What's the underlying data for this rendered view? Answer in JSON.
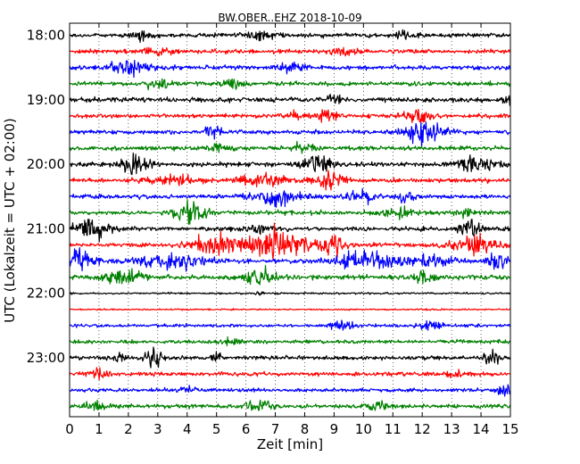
{
  "chart_data": {
    "type": "line",
    "title": "BW.OBER..EHZ 2018-10-09",
    "xlabel": "Zeit  [min]",
    "ylabel": "UTC (Lokalzeit = UTC + 02:00)",
    "xlim": [
      0,
      15
    ],
    "x_ticks": [
      "0",
      "1",
      "2",
      "3",
      "4",
      "5",
      "6",
      "7",
      "8",
      "9",
      "10",
      "11",
      "12",
      "13",
      "14",
      "15"
    ],
    "y_tick_labels": [
      "18:00",
      "19:00",
      "20:00",
      "21:00",
      "22:00",
      "23:00"
    ],
    "y_tick_rows": [
      0,
      4,
      8,
      12,
      16,
      20
    ],
    "grid": "vertical dotted lines at each minute",
    "row_interval_min": 15,
    "colors": [
      "#000000",
      "#ff0000",
      "#0000ff",
      "#008000"
    ],
    "traces": [
      {
        "start": "18:00",
        "color": "#000000",
        "amp": 0.22,
        "bursts": [
          [
            2.4,
            0.55,
            0.3
          ],
          [
            6.5,
            0.45,
            0.6
          ],
          [
            11.5,
            0.4,
            0.4
          ]
        ]
      },
      {
        "start": "18:15",
        "color": "#ff0000",
        "amp": 0.22,
        "bursts": [
          [
            3.0,
            0.4,
            0.5
          ],
          [
            9.5,
            0.4,
            0.5
          ]
        ]
      },
      {
        "start": "18:30",
        "color": "#0000ff",
        "amp": 0.22,
        "bursts": [
          [
            2.0,
            0.9,
            0.6
          ],
          [
            7.5,
            0.35,
            0.5
          ]
        ]
      },
      {
        "start": "18:45",
        "color": "#008000",
        "amp": 0.22,
        "bursts": [
          [
            3.0,
            0.55,
            0.4
          ],
          [
            5.5,
            0.5,
            0.3
          ]
        ]
      },
      {
        "start": "19:00",
        "color": "#000000",
        "amp": 0.24,
        "bursts": [
          [
            9.0,
            0.4,
            0.3
          ],
          [
            14.9,
            0.6,
            0.2
          ]
        ]
      },
      {
        "start": "19:15",
        "color": "#ff0000",
        "amp": 0.22,
        "bursts": [
          [
            7.5,
            0.5,
            0.3
          ],
          [
            8.7,
            0.6,
            0.4
          ],
          [
            11.8,
            0.7,
            0.5
          ]
        ]
      },
      {
        "start": "19:30",
        "color": "#0000ff",
        "amp": 0.22,
        "bursts": [
          [
            12.1,
            1.2,
            0.6
          ],
          [
            4.9,
            0.5,
            0.3
          ]
        ]
      },
      {
        "start": "19:45",
        "color": "#008000",
        "amp": 0.22,
        "bursts": [
          [
            5.0,
            0.6,
            0.3
          ],
          [
            8.0,
            0.5,
            0.4
          ]
        ]
      },
      {
        "start": "20:00",
        "color": "#000000",
        "amp": 0.24,
        "bursts": [
          [
            2.2,
            0.9,
            0.5
          ],
          [
            8.5,
            1.0,
            0.5
          ],
          [
            13.8,
            0.9,
            0.6
          ]
        ]
      },
      {
        "start": "20:15",
        "color": "#ff0000",
        "amp": 0.22,
        "bursts": [
          [
            3.5,
            0.5,
            0.8
          ],
          [
            6.5,
            0.6,
            0.8
          ],
          [
            8.8,
            0.9,
            0.5
          ]
        ]
      },
      {
        "start": "20:30",
        "color": "#0000ff",
        "amp": 0.22,
        "bursts": [
          [
            7.0,
            0.9,
            0.8
          ],
          [
            10.0,
            0.6,
            0.5
          ],
          [
            11.5,
            0.6,
            0.3
          ]
        ]
      },
      {
        "start": "20:45",
        "color": "#008000",
        "amp": 0.22,
        "bursts": [
          [
            4.1,
            1.1,
            0.5
          ],
          [
            11.2,
            0.6,
            0.5
          ],
          [
            13.5,
            0.4,
            0.4
          ]
        ]
      },
      {
        "start": "21:00",
        "color": "#000000",
        "amp": 0.22,
        "bursts": [
          [
            0.7,
            1.0,
            0.6
          ],
          [
            6.5,
            0.5,
            0.4
          ],
          [
            13.6,
            0.8,
            0.4
          ]
        ]
      },
      {
        "start": "21:15",
        "color": "#ff0000",
        "amp": 0.22,
        "bursts": [
          [
            5.0,
            1.1,
            0.8
          ],
          [
            7.1,
            1.5,
            1.0
          ],
          [
            9.0,
            0.8,
            0.4
          ],
          [
            13.8,
            0.9,
            0.7
          ]
        ]
      },
      {
        "start": "21:30",
        "color": "#0000ff",
        "amp": 0.25,
        "bursts": [
          [
            0.4,
            1.0,
            0.5
          ],
          [
            3.6,
            0.8,
            1.0
          ],
          [
            10.2,
            0.9,
            1.2
          ],
          [
            12.4,
            0.7,
            0.5
          ],
          [
            14.6,
            0.8,
            0.3
          ]
        ]
      },
      {
        "start": "21:45",
        "color": "#008000",
        "amp": 0.24,
        "bursts": [
          [
            1.8,
            0.9,
            0.6
          ],
          [
            6.5,
            0.8,
            0.5
          ],
          [
            12.0,
            0.7,
            0.3
          ]
        ]
      },
      {
        "start": "22:00",
        "color": "#000000",
        "amp": 0.1,
        "bursts": [
          [
            6.5,
            0.3,
            0.1
          ]
        ]
      },
      {
        "start": "22:15",
        "color": "#ff0000",
        "amp": 0.08,
        "bursts": []
      },
      {
        "start": "22:30",
        "color": "#0000ff",
        "amp": 0.16,
        "bursts": [
          [
            9.3,
            0.5,
            0.5
          ],
          [
            12.3,
            0.45,
            0.4
          ]
        ]
      },
      {
        "start": "22:45",
        "color": "#008000",
        "amp": 0.2,
        "bursts": [
          [
            5.5,
            0.4,
            0.3
          ]
        ]
      },
      {
        "start": "23:00",
        "color": "#000000",
        "amp": 0.2,
        "bursts": [
          [
            2.8,
            1.3,
            0.3
          ],
          [
            1.7,
            0.7,
            0.2
          ],
          [
            14.4,
            0.8,
            0.3
          ],
          [
            5.0,
            0.5,
            0.15
          ]
        ]
      },
      {
        "start": "23:15",
        "color": "#ff0000",
        "amp": 0.2,
        "bursts": [
          [
            1.0,
            0.6,
            0.3
          ],
          [
            13.2,
            0.45,
            0.3
          ]
        ]
      },
      {
        "start": "23:30",
        "color": "#0000ff",
        "amp": 0.18,
        "bursts": [
          [
            14.8,
            0.6,
            0.3
          ],
          [
            4.0,
            0.3,
            0.3
          ]
        ]
      },
      {
        "start": "23:45",
        "color": "#008000",
        "amp": 0.22,
        "bursts": [
          [
            0.8,
            0.5,
            0.4
          ],
          [
            6.4,
            0.7,
            0.4
          ],
          [
            10.5,
            0.5,
            0.4
          ]
        ]
      }
    ]
  }
}
